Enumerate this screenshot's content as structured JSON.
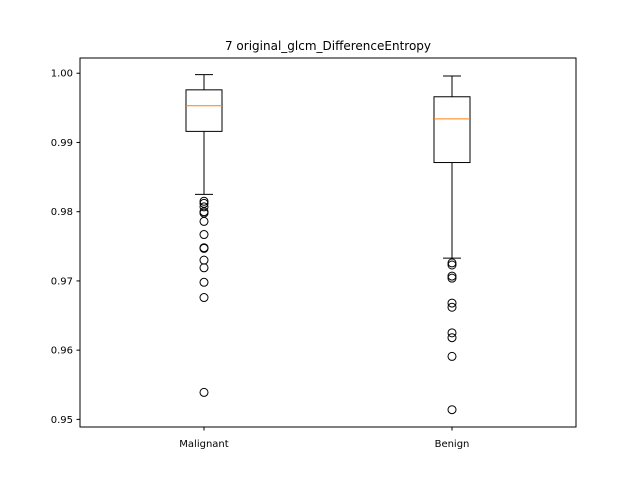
{
  "chart_data": {
    "type": "box",
    "title": "7 original_glcm_DifferenceEntropy",
    "xlabel": "",
    "ylabel": "",
    "ylim": [
      0.9489,
      1.0022
    ],
    "yticks": [
      0.95,
      0.96,
      0.97,
      0.98,
      0.99,
      1.0
    ],
    "ytick_labels": [
      "0.95",
      "0.96",
      "0.97",
      "0.98",
      "0.99",
      "1.00"
    ],
    "categories": [
      "Malignant",
      "Benign"
    ],
    "colors": {
      "box": "#000000",
      "median": "#ff7f0e",
      "axes": "#000000",
      "background": "#ffffff"
    },
    "boxes": [
      {
        "label": "Malignant",
        "whisker_low": 0.9825,
        "q1": 0.9916,
        "median": 0.9953,
        "q3": 0.9976,
        "whisker_high": 0.9998,
        "fliers": [
          0.9815,
          0.9812,
          0.9807,
          0.98,
          0.9798,
          0.9786,
          0.9767,
          0.9748,
          0.9747,
          0.973,
          0.9719,
          0.9698,
          0.9676,
          0.9539
        ]
      },
      {
        "label": "Benign",
        "whisker_low": 0.9733,
        "q1": 0.9871,
        "median": 0.9934,
        "q3": 0.9966,
        "whisker_high": 0.9996,
        "fliers": [
          0.9726,
          0.9723,
          0.9707,
          0.9704,
          0.9668,
          0.9662,
          0.9625,
          0.9618,
          0.9591,
          0.9514
        ]
      }
    ]
  }
}
